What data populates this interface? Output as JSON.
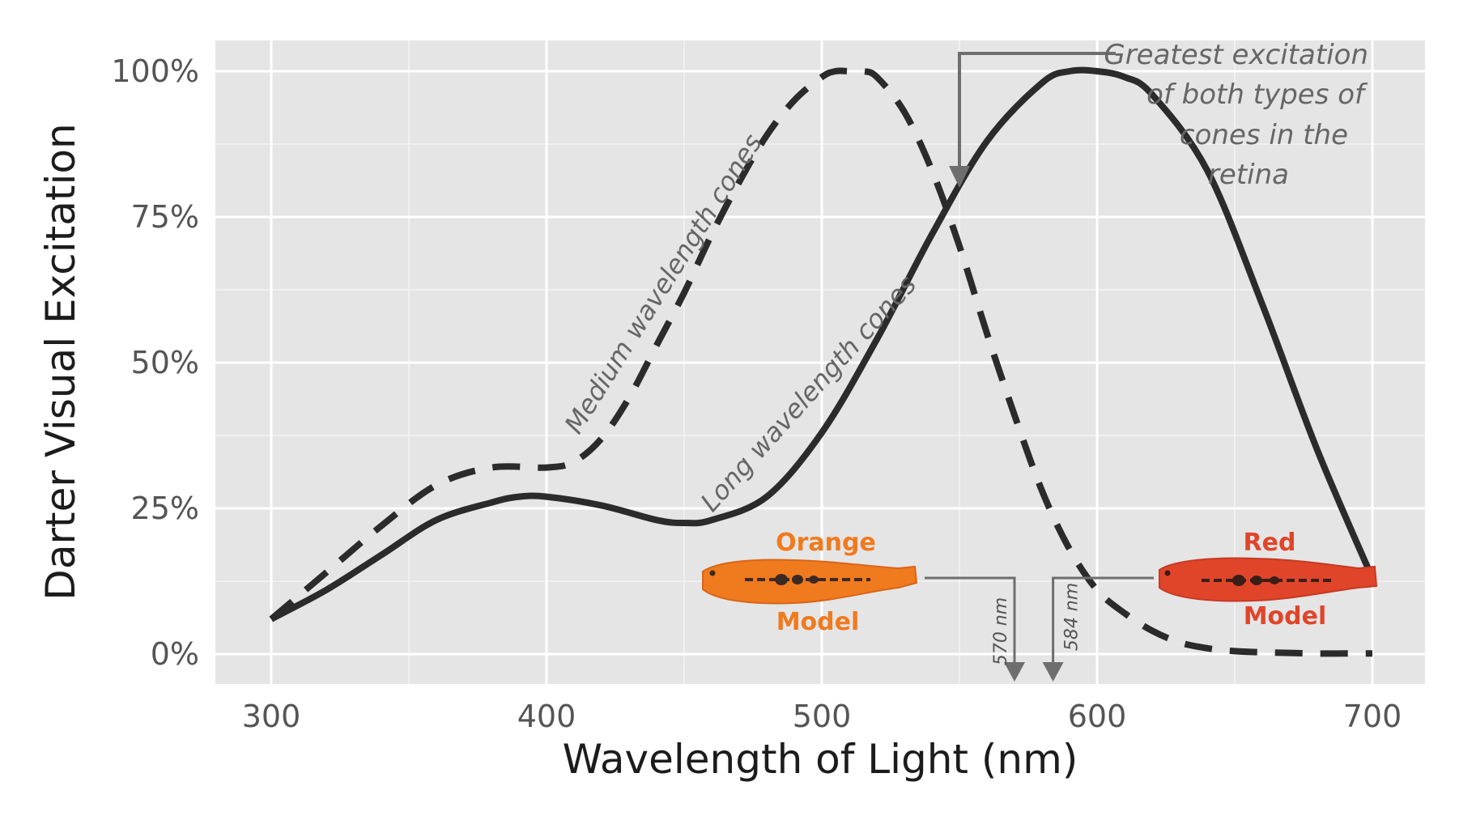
{
  "chart_data": {
    "type": "line",
    "xlabel": "Wavelength of Light (nm)",
    "ylabel": "Darter Visual Excitation",
    "xlim": [
      280,
      720
    ],
    "ylim": [
      -10,
      110
    ],
    "x_ticks": [
      300,
      400,
      500,
      600,
      700
    ],
    "x_tick_labels": [
      "300",
      "400",
      "500",
      "600",
      "700"
    ],
    "y_ticks": [
      0,
      25,
      50,
      75,
      100
    ],
    "y_tick_labels": [
      "0%",
      "25%",
      "50%",
      "75%",
      "100%"
    ],
    "grid": true,
    "background": "#e5e5e5",
    "series": [
      {
        "name": "Medium wavelength cones",
        "style": "dashed",
        "color": "#2b2b2b",
        "x": [
          300,
          320,
          340,
          360,
          380,
          400,
          410,
          420,
          430,
          440,
          450,
          460,
          470,
          480,
          490,
          500,
          505,
          510,
          515,
          520,
          530,
          540,
          550,
          560,
          570,
          580,
          590,
          600,
          610,
          620,
          630,
          640,
          650,
          660,
          670,
          680,
          690,
          700
        ],
        "y": [
          6,
          14,
          22,
          29,
          32,
          32,
          33,
          37,
          44,
          53,
          62,
          72,
          81,
          89,
          95,
          99,
          100,
          100,
          100,
          99,
          93,
          83,
          70,
          55,
          41,
          28,
          18,
          11,
          7,
          4,
          2,
          1,
          0.5,
          0.3,
          0.2,
          0.1,
          0.1,
          0.1
        ]
      },
      {
        "name": "Long wavelength cones",
        "style": "solid",
        "color": "#2b2b2b",
        "x": [
          300,
          320,
          340,
          360,
          380,
          390,
          400,
          420,
          440,
          450,
          460,
          480,
          500,
          520,
          540,
          560,
          580,
          590,
          600,
          610,
          620,
          640,
          660,
          680,
          700
        ],
        "y": [
          6,
          11,
          17,
          23,
          26,
          27,
          27,
          25.5,
          23,
          22.5,
          23,
          27,
          38,
          54,
          72,
          88,
          98,
          100,
          100,
          99,
          96,
          83,
          60,
          35,
          13
        ]
      }
    ],
    "annotations": {
      "medium_label": "Medium wavelength cones",
      "long_label": "Long wavelength cones",
      "greatest_line1": "Greatest excitation",
      "greatest_line2": "of both types of",
      "greatest_line3": "cones in the",
      "greatest_line4": "retina",
      "greatest_x": 550,
      "orange_model_label1": "Orange",
      "orange_model_label2": "Model",
      "orange_model_nm": "570 nm",
      "orange_model_x": 570,
      "red_model_label1": "Red",
      "red_model_label2": "Model",
      "red_model_nm": "584 nm",
      "red_model_x": 584,
      "orange_color": "#f07a1e",
      "red_color": "#e0452a"
    }
  }
}
